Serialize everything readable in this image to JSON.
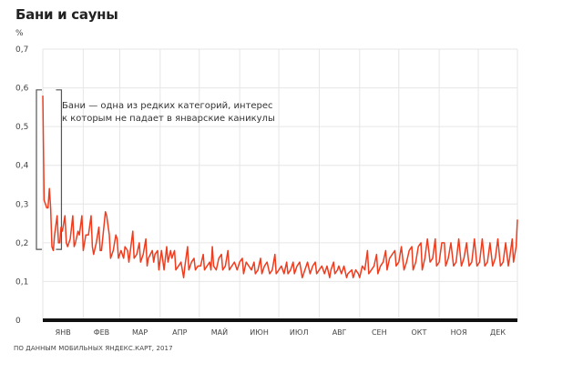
{
  "chart_data": {
    "type": "line",
    "title": "Бани и сауны",
    "ylabel": "%",
    "xlabel": "",
    "ylim": [
      0,
      0.7
    ],
    "yticks": [
      "0",
      "0,1",
      "0,2",
      "0,3",
      "0,4",
      "0,5",
      "0,6",
      "0,7"
    ],
    "ytick_values": [
      0,
      0.1,
      0.2,
      0.3,
      0.4,
      0.5,
      0.6,
      0.7
    ],
    "months": [
      "ЯНВ",
      "ФЕВ",
      "МАР",
      "АПР",
      "МАЙ",
      "ИЮН",
      "ИЮЛ",
      "АВГ",
      "СЕН",
      "ОКТ",
      "НОЯ",
      "ДЕК"
    ],
    "grid": true,
    "line_color": "#f03c1e",
    "x_unit": "day of year 2017",
    "series": [
      {
        "name": "Бани и сауны",
        "points": [
          [
            1,
            0.58
          ],
          [
            2,
            0.31
          ],
          [
            3,
            0.3
          ],
          [
            4,
            0.29
          ],
          [
            5,
            0.29
          ],
          [
            6,
            0.34
          ],
          [
            7,
            0.29
          ],
          [
            8,
            0.19
          ],
          [
            9,
            0.18
          ],
          [
            10,
            0.22
          ],
          [
            12,
            0.27
          ],
          [
            13,
            0.2
          ],
          [
            14,
            0.2
          ],
          [
            15,
            0.24
          ],
          [
            16,
            0.23
          ],
          [
            18,
            0.27
          ],
          [
            19,
            0.2
          ],
          [
            20,
            0.19
          ],
          [
            22,
            0.21
          ],
          [
            24,
            0.27
          ],
          [
            25,
            0.19
          ],
          [
            26,
            0.2
          ],
          [
            28,
            0.23
          ],
          [
            29,
            0.22
          ],
          [
            31,
            0.27
          ],
          [
            32,
            0.18
          ],
          [
            34,
            0.22
          ],
          [
            36,
            0.22
          ],
          [
            38,
            0.27
          ],
          [
            39,
            0.19
          ],
          [
            40,
            0.17
          ],
          [
            42,
            0.2
          ],
          [
            44,
            0.24
          ],
          [
            45,
            0.18
          ],
          [
            46,
            0.18
          ],
          [
            49,
            0.28
          ],
          [
            50,
            0.27
          ],
          [
            52,
            0.22
          ],
          [
            53,
            0.16
          ],
          [
            55,
            0.18
          ],
          [
            57,
            0.22
          ],
          [
            58,
            0.21
          ],
          [
            59,
            0.16
          ],
          [
            61,
            0.18
          ],
          [
            63,
            0.16
          ],
          [
            64,
            0.19
          ],
          [
            66,
            0.18
          ],
          [
            67,
            0.15
          ],
          [
            70,
            0.23
          ],
          [
            71,
            0.16
          ],
          [
            73,
            0.17
          ],
          [
            75,
            0.2
          ],
          [
            76,
            0.15
          ],
          [
            78,
            0.17
          ],
          [
            80,
            0.21
          ],
          [
            81,
            0.14
          ],
          [
            82,
            0.16
          ],
          [
            85,
            0.18
          ],
          [
            86,
            0.15
          ],
          [
            87,
            0.17
          ],
          [
            89,
            0.18
          ],
          [
            90,
            0.13
          ],
          [
            92,
            0.18
          ],
          [
            94,
            0.13
          ],
          [
            96,
            0.19
          ],
          [
            97,
            0.15
          ],
          [
            99,
            0.18
          ],
          [
            100,
            0.16
          ],
          [
            102,
            0.18
          ],
          [
            103,
            0.13
          ],
          [
            105,
            0.14
          ],
          [
            107,
            0.15
          ],
          [
            109,
            0.11
          ],
          [
            110,
            0.14
          ],
          [
            112,
            0.19
          ],
          [
            113,
            0.13
          ],
          [
            115,
            0.15
          ],
          [
            117,
            0.16
          ],
          [
            118,
            0.13
          ],
          [
            120,
            0.14
          ],
          [
            122,
            0.14
          ],
          [
            124,
            0.17
          ],
          [
            125,
            0.13
          ],
          [
            127,
            0.14
          ],
          [
            129,
            0.15
          ],
          [
            130,
            0.13
          ],
          [
            131,
            0.19
          ],
          [
            132,
            0.14
          ],
          [
            134,
            0.13
          ],
          [
            136,
            0.16
          ],
          [
            138,
            0.17
          ],
          [
            139,
            0.13
          ],
          [
            141,
            0.14
          ],
          [
            143,
            0.18
          ],
          [
            144,
            0.13
          ],
          [
            146,
            0.14
          ],
          [
            148,
            0.15
          ],
          [
            150,
            0.13
          ],
          [
            152,
            0.15
          ],
          [
            154,
            0.16
          ],
          [
            155,
            0.12
          ],
          [
            157,
            0.15
          ],
          [
            159,
            0.14
          ],
          [
            161,
            0.13
          ],
          [
            163,
            0.15
          ],
          [
            164,
            0.12
          ],
          [
            166,
            0.13
          ],
          [
            168,
            0.16
          ],
          [
            169,
            0.12
          ],
          [
            171,
            0.14
          ],
          [
            173,
            0.15
          ],
          [
            175,
            0.12
          ],
          [
            177,
            0.13
          ],
          [
            179,
            0.17
          ],
          [
            180,
            0.12
          ],
          [
            182,
            0.13
          ],
          [
            184,
            0.14
          ],
          [
            186,
            0.12
          ],
          [
            188,
            0.15
          ],
          [
            189,
            0.12
          ],
          [
            191,
            0.13
          ],
          [
            193,
            0.15
          ],
          [
            194,
            0.12
          ],
          [
            196,
            0.14
          ],
          [
            198,
            0.15
          ],
          [
            200,
            0.11
          ],
          [
            202,
            0.13
          ],
          [
            204,
            0.15
          ],
          [
            206,
            0.12
          ],
          [
            208,
            0.14
          ],
          [
            210,
            0.15
          ],
          [
            211,
            0.12
          ],
          [
            213,
            0.13
          ],
          [
            215,
            0.14
          ],
          [
            217,
            0.12
          ],
          [
            219,
            0.14
          ],
          [
            221,
            0.11
          ],
          [
            222,
            0.13
          ],
          [
            224,
            0.15
          ],
          [
            225,
            0.12
          ],
          [
            227,
            0.13
          ],
          [
            228,
            0.14
          ],
          [
            230,
            0.12
          ],
          [
            232,
            0.14
          ],
          [
            234,
            0.11
          ],
          [
            235,
            0.12
          ],
          [
            238,
            0.13
          ],
          [
            239,
            0.11
          ],
          [
            241,
            0.13
          ],
          [
            243,
            0.12
          ],
          [
            244,
            0.11
          ],
          [
            246,
            0.14
          ],
          [
            248,
            0.13
          ],
          [
            250,
            0.18
          ],
          [
            251,
            0.12
          ],
          [
            253,
            0.13
          ],
          [
            255,
            0.14
          ],
          [
            257,
            0.17
          ],
          [
            258,
            0.12
          ],
          [
            260,
            0.14
          ],
          [
            262,
            0.15
          ],
          [
            264,
            0.18
          ],
          [
            265,
            0.13
          ],
          [
            267,
            0.16
          ],
          [
            269,
            0.17
          ],
          [
            271,
            0.18
          ],
          [
            272,
            0.14
          ],
          [
            274,
            0.15
          ],
          [
            276,
            0.19
          ],
          [
            278,
            0.13
          ],
          [
            280,
            0.15
          ],
          [
            282,
            0.18
          ],
          [
            284,
            0.19
          ],
          [
            285,
            0.13
          ],
          [
            287,
            0.15
          ],
          [
            289,
            0.19
          ],
          [
            291,
            0.2
          ],
          [
            292,
            0.13
          ],
          [
            294,
            0.16
          ],
          [
            296,
            0.21
          ],
          [
            298,
            0.15
          ],
          [
            300,
            0.16
          ],
          [
            302,
            0.21
          ],
          [
            303,
            0.14
          ],
          [
            305,
            0.15
          ],
          [
            307,
            0.2
          ],
          [
            309,
            0.2
          ],
          [
            310,
            0.14
          ],
          [
            312,
            0.16
          ],
          [
            314,
            0.2
          ],
          [
            316,
            0.14
          ],
          [
            318,
            0.15
          ],
          [
            320,
            0.21
          ],
          [
            322,
            0.14
          ],
          [
            324,
            0.16
          ],
          [
            326,
            0.2
          ],
          [
            328,
            0.14
          ],
          [
            330,
            0.15
          ],
          [
            332,
            0.21
          ],
          [
            334,
            0.14
          ],
          [
            336,
            0.15
          ],
          [
            338,
            0.21
          ],
          [
            340,
            0.14
          ],
          [
            342,
            0.15
          ],
          [
            344,
            0.2
          ],
          [
            346,
            0.14
          ],
          [
            348,
            0.16
          ],
          [
            350,
            0.21
          ],
          [
            352,
            0.14
          ],
          [
            354,
            0.15
          ],
          [
            356,
            0.2
          ],
          [
            358,
            0.14
          ],
          [
            359,
            0.16
          ],
          [
            361,
            0.21
          ],
          [
            362,
            0.15
          ],
          [
            364,
            0.19
          ],
          [
            365,
            0.26
          ]
        ]
      }
    ],
    "annotations": [
      {
        "day_range": [
          1,
          9
        ],
        "value_range": [
          0.19,
          0.59
        ],
        "lines": [
          "Бани — одна из редких категорий, интерес",
          "к которым не падает в январские каникулы"
        ]
      }
    ],
    "source": "ПО ДАННЫМ МОБИЛЬНЫХ ЯНДЕКС.КАРТ, 2017"
  }
}
